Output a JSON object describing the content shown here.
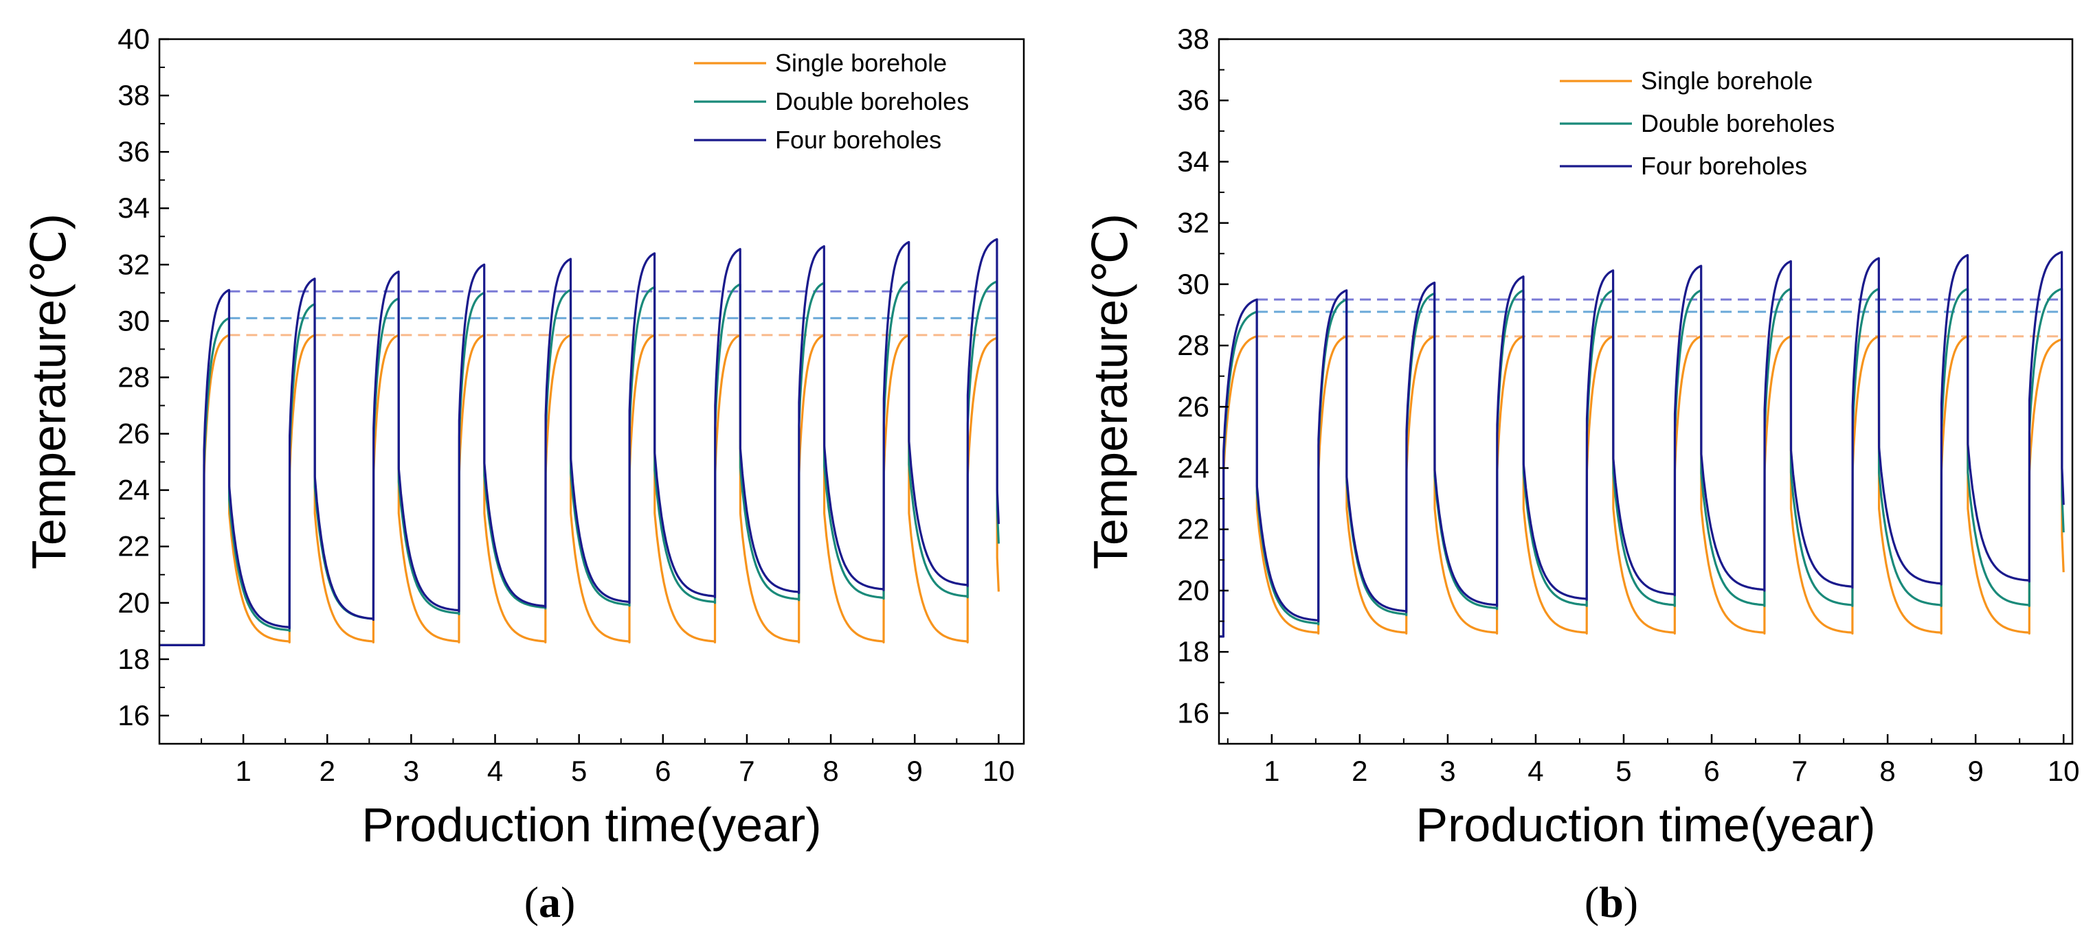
{
  "chart_data": [
    {
      "type": "line",
      "panel_label": {
        "open": "(",
        "letter": "a",
        "close": ")"
      },
      "xlabel": "Production time(year)",
      "ylabel": "Temperature(℃)",
      "xlim": [
        0,
        10.3
      ],
      "ylim": [
        15,
        40
      ],
      "x_ticks": [
        1,
        2,
        3,
        4,
        5,
        6,
        7,
        8,
        9,
        10
      ],
      "y_ticks": [
        16,
        18,
        20,
        22,
        24,
        26,
        28,
        30,
        32,
        34,
        36,
        38,
        40
      ],
      "legend_position": "top-right",
      "colors": {
        "single": "#f7941d",
        "double": "#1a8a7a",
        "four": "#1a1a8c"
      },
      "series": [
        {
          "name": "Single borehole",
          "key": "single",
          "start_x": 0.53,
          "initial_value": 18.5,
          "cycles": 10,
          "heat_start_x": [
            0.53,
            1.55,
            2.55,
            3.57,
            4.6,
            5.6,
            6.62,
            7.62,
            8.63,
            9.63
          ],
          "heat_end_x": [
            0.83,
            1.85,
            2.85,
            3.87,
            4.9,
            5.9,
            6.92,
            7.92,
            8.93,
            9.98
          ],
          "peaks": [
            29.5,
            29.5,
            29.5,
            29.5,
            29.5,
            29.5,
            29.5,
            29.5,
            29.5,
            29.4
          ],
          "troughs": [
            18.6,
            18.6,
            18.6,
            18.6,
            18.6,
            18.6,
            18.6,
            18.6,
            18.6,
            20.4
          ]
        },
        {
          "name": "Double boreholes",
          "key": "double",
          "start_x": 0.53,
          "initial_value": 18.5,
          "cycles": 10,
          "heat_start_x": [
            0.53,
            1.55,
            2.55,
            3.57,
            4.6,
            5.6,
            6.62,
            7.62,
            8.63,
            9.63
          ],
          "heat_end_x": [
            0.83,
            1.85,
            2.85,
            3.87,
            4.9,
            5.9,
            6.92,
            7.92,
            8.93,
            9.98
          ],
          "peaks": [
            30.1,
            30.6,
            30.8,
            31.0,
            31.1,
            31.2,
            31.3,
            31.35,
            31.4,
            31.4
          ],
          "troughs": [
            19.0,
            19.4,
            19.6,
            19.8,
            19.9,
            20.0,
            20.1,
            20.15,
            20.2,
            22.1
          ]
        },
        {
          "name": "Four boreholes",
          "key": "four",
          "start_x": 0.53,
          "initial_value": 18.5,
          "cycles": 10,
          "heat_start_x": [
            0.53,
            1.55,
            2.55,
            3.57,
            4.6,
            5.6,
            6.62,
            7.62,
            8.63,
            9.63
          ],
          "heat_end_x": [
            0.83,
            1.85,
            2.85,
            3.87,
            4.9,
            5.9,
            6.92,
            7.92,
            8.93,
            9.98
          ],
          "peaks": [
            31.1,
            31.5,
            31.75,
            32.0,
            32.2,
            32.4,
            32.55,
            32.65,
            32.8,
            32.9
          ],
          "troughs": [
            19.1,
            19.4,
            19.7,
            19.85,
            20.0,
            20.2,
            20.35,
            20.45,
            20.6,
            22.8
          ]
        }
      ],
      "reference_lines": [
        {
          "key": "single",
          "value": 29.5,
          "color": "#f9b98a"
        },
        {
          "key": "double",
          "value": 30.1,
          "color": "#6aa8d8"
        },
        {
          "key": "four",
          "value": 31.05,
          "color": "#7a7ad6"
        }
      ]
    },
    {
      "type": "line",
      "panel_label": {
        "open": "(",
        "letter": "b",
        "close": ")"
      },
      "xlabel": "Production time(year)",
      "ylabel": "Temperature(℃)",
      "xlim": [
        0.4,
        10.1
      ],
      "ylim": [
        15,
        38
      ],
      "x_ticks": [
        1,
        2,
        3,
        4,
        5,
        6,
        7,
        8,
        9,
        10
      ],
      "y_ticks": [
        16,
        18,
        20,
        22,
        24,
        26,
        28,
        30,
        32,
        34,
        36,
        38
      ],
      "legend_position": "top-right",
      "colors": {
        "single": "#f7941d",
        "double": "#1a8a7a",
        "four": "#1a1a8c"
      },
      "series": [
        {
          "name": "Single borehole",
          "key": "single",
          "start_x": 0.45,
          "initial_value": 18.5,
          "cycles": 10,
          "heat_start_x": [
            0.45,
            1.53,
            2.53,
            3.56,
            4.58,
            5.58,
            6.6,
            7.6,
            8.61,
            9.61
          ],
          "heat_end_x": [
            0.83,
            1.85,
            2.85,
            3.86,
            4.88,
            5.88,
            6.9,
            7.9,
            8.91,
            9.98
          ],
          "peaks": [
            28.3,
            28.3,
            28.3,
            28.3,
            28.3,
            28.3,
            28.3,
            28.3,
            28.3,
            28.2
          ],
          "troughs": [
            18.6,
            18.6,
            18.6,
            18.6,
            18.6,
            18.6,
            18.6,
            18.6,
            18.6,
            20.6
          ]
        },
        {
          "name": "Double boreholes",
          "key": "double",
          "start_x": 0.45,
          "initial_value": 18.5,
          "cycles": 10,
          "heat_start_x": [
            0.45,
            1.53,
            2.53,
            3.56,
            4.58,
            5.58,
            6.6,
            7.6,
            8.61,
            9.61
          ],
          "heat_end_x": [
            0.83,
            1.85,
            2.85,
            3.86,
            4.88,
            5.88,
            6.9,
            7.9,
            8.91,
            9.98
          ],
          "peaks": [
            29.1,
            29.5,
            29.7,
            29.8,
            29.8,
            29.8,
            29.85,
            29.85,
            29.85,
            29.85
          ],
          "troughs": [
            18.9,
            19.2,
            19.4,
            19.5,
            19.5,
            19.5,
            19.5,
            19.5,
            19.5,
            21.9
          ]
        },
        {
          "name": "Four boreholes",
          "key": "four",
          "start_x": 0.45,
          "initial_value": 18.5,
          "cycles": 10,
          "heat_start_x": [
            0.45,
            1.53,
            2.53,
            3.56,
            4.58,
            5.58,
            6.6,
            7.6,
            8.61,
            9.61
          ],
          "heat_end_x": [
            0.83,
            1.85,
            2.85,
            3.86,
            4.88,
            5.88,
            6.9,
            7.9,
            8.91,
            9.98
          ],
          "peaks": [
            29.5,
            29.8,
            30.05,
            30.25,
            30.45,
            30.6,
            30.75,
            30.85,
            30.95,
            31.05
          ],
          "troughs": [
            19.0,
            19.3,
            19.5,
            19.7,
            19.85,
            20.0,
            20.1,
            20.2,
            20.3,
            22.8
          ]
        }
      ],
      "reference_lines": [
        {
          "key": "single",
          "value": 28.3,
          "color": "#f9b98a"
        },
        {
          "key": "double",
          "value": 29.1,
          "color": "#6aa8d8"
        },
        {
          "key": "four",
          "value": 29.5,
          "color": "#7a7ad6"
        }
      ]
    }
  ]
}
